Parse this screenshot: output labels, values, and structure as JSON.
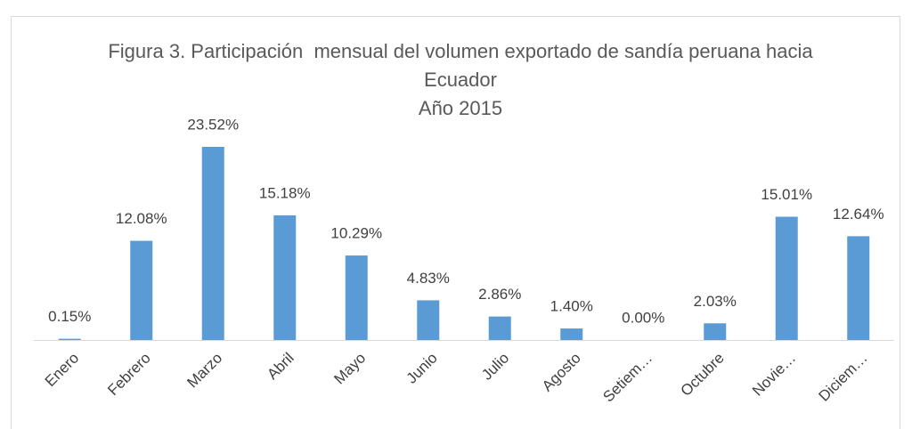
{
  "chart_data": {
    "type": "bar",
    "title": "Figura 3. Participación  mensual del volumen exportado de sandía peruana hacia Ecuador",
    "subtitle": "Año 2015",
    "categories": [
      "Enero",
      "Febrero",
      "Marzo",
      "Abril",
      "Mayo",
      "Junio",
      "Julio",
      "Agosto",
      "Setiem…",
      "Octubre",
      "Novie…",
      "Diciem…"
    ],
    "values": [
      0.15,
      12.08,
      23.52,
      15.18,
      10.29,
      4.83,
      2.86,
      1.4,
      0,
      2.03,
      15.01,
      12.64
    ],
    "value_labels": [
      "0.15%",
      "12.08%",
      "23.52%",
      "15.18%",
      "10.29%",
      "4.83%",
      "2.86%",
      "1.40%",
      "0.00%",
      "2.03%",
      "15.01%",
      "12.64%"
    ],
    "color": "#5b9bd5"
  }
}
